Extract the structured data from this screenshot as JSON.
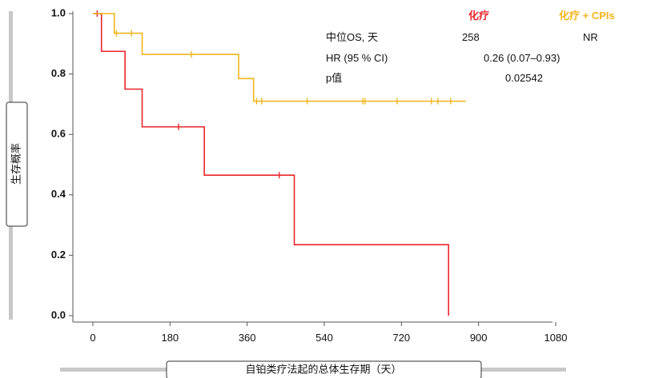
{
  "chart_data": {
    "type": "line",
    "subtype": "kaplan-meier-step",
    "xlabel": "自铂类疗法起的总体生存期（天）",
    "ylabel": "生存概率",
    "xlim": [
      0,
      1080
    ],
    "ylim": [
      0,
      1.0
    ],
    "x_ticks": [
      0,
      180,
      360,
      540,
      720,
      900,
      1080
    ],
    "y_ticks": [
      "0.0",
      "0.2",
      "0.4",
      "0.6",
      "0.8",
      "1.0"
    ],
    "legend": {
      "placement": "top-right",
      "entries": [
        {
          "label": "化疗",
          "color": "#e8262c"
        },
        {
          "label": "化疗 + CPIs",
          "color": "#f2b51c"
        }
      ]
    },
    "series": [
      {
        "name": "化疗",
        "color": "#e8262c",
        "steps": [
          [
            0,
            1.0
          ],
          [
            20,
            0.875
          ],
          [
            75,
            0.75
          ],
          [
            115,
            0.625
          ],
          [
            260,
            0.465
          ],
          [
            470,
            0.235
          ],
          [
            830,
            0.0
          ]
        ],
        "censored": [
          [
            10,
            1.0
          ],
          [
            200,
            0.625
          ],
          [
            435,
            0.465
          ]
        ]
      },
      {
        "name": "化疗 + CPIs",
        "color": "#f2b51c",
        "steps": [
          [
            0,
            1.0
          ],
          [
            50,
            0.935
          ],
          [
            115,
            0.865
          ],
          [
            340,
            0.785
          ],
          [
            375,
            0.71
          ],
          [
            870,
            0.71
          ]
        ],
        "censored": [
          [
            55,
            0.935
          ],
          [
            90,
            0.935
          ],
          [
            230,
            0.865
          ],
          [
            382,
            0.71
          ],
          [
            394,
            0.71
          ],
          [
            500,
            0.71
          ],
          [
            630,
            0.71
          ],
          [
            635,
            0.71
          ],
          [
            710,
            0.71
          ],
          [
            790,
            0.71
          ],
          [
            805,
            0.71
          ],
          [
            835,
            0.71
          ]
        ]
      }
    ],
    "stats_table": {
      "rows": [
        {
          "label": "中位OS, 天",
          "chemo": "258",
          "combo": "NR"
        },
        {
          "label": "HR (95 % CI)",
          "value": "0.26 (0.07–0.93)"
        },
        {
          "label": "p值",
          "value": "0.02542"
        }
      ]
    }
  },
  "colors": {
    "frame_gray": "#c8c8c8",
    "axis": "#555555",
    "text": "#111111"
  }
}
